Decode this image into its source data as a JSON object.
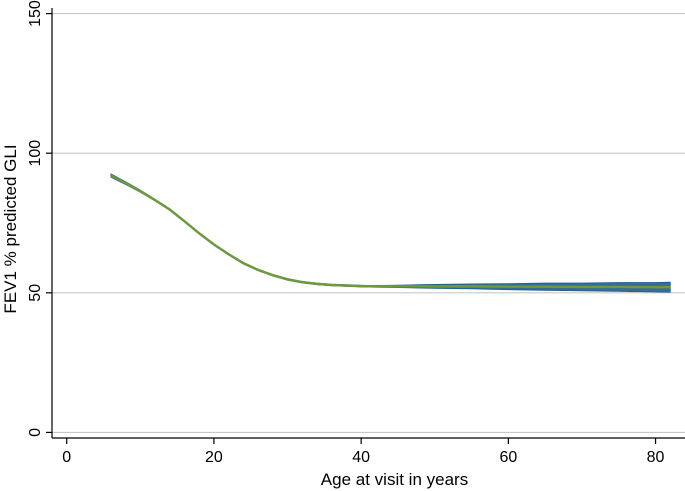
{
  "chart_data": {
    "type": "line",
    "xlabel": "Age at visit in years",
    "ylabel": "FEV1 % predicted GLI",
    "xlim": [
      -2,
      84
    ],
    "ylim": [
      -2,
      152
    ],
    "xticks": [
      0,
      20,
      40,
      60,
      80
    ],
    "yticks": [
      0,
      50,
      100,
      150
    ],
    "grid": "horizontal",
    "colors": {
      "line": "#6e9a3c",
      "band": "#1f5d8c",
      "grid": "#c8c8c8",
      "axis": "#000000"
    },
    "series": [
      {
        "x": [
          6,
          8,
          10,
          12,
          14,
          16,
          18,
          20,
          22,
          24,
          26,
          28,
          30,
          32,
          34,
          36,
          38,
          40,
          42,
          44,
          46,
          48,
          50,
          55,
          60,
          65,
          70,
          75,
          80,
          82
        ],
        "y": [
          92,
          89.3,
          86.4,
          83.2,
          79.8,
          75.6,
          71.3,
          67.3,
          63.8,
          60.6,
          58.2,
          56.3,
          54.8,
          53.8,
          53.2,
          52.8,
          52.6,
          52.4,
          52.3,
          52.3,
          52.3,
          52.3,
          52.3,
          52.3,
          52.2,
          52.2,
          52.1,
          52.1,
          52.0,
          52.0
        ],
        "lower": [
          91.4,
          88.8,
          86.0,
          82.9,
          79.5,
          75.3,
          71.0,
          67.0,
          63.5,
          60.3,
          57.9,
          56.0,
          54.5,
          53.5,
          52.9,
          52.5,
          52.3,
          52.1,
          52.0,
          51.9,
          51.8,
          51.7,
          51.6,
          51.4,
          51.1,
          50.9,
          50.7,
          50.5,
          50.3,
          50.2
        ],
        "upper": [
          92.6,
          89.8,
          86.8,
          83.5,
          80.1,
          75.9,
          71.6,
          67.6,
          64.1,
          60.9,
          58.5,
          56.6,
          55.1,
          54.1,
          53.5,
          53.1,
          52.9,
          52.7,
          52.6,
          52.7,
          52.8,
          52.9,
          53.0,
          53.2,
          53.3,
          53.5,
          53.5,
          53.7,
          53.7,
          53.8
        ]
      }
    ]
  }
}
